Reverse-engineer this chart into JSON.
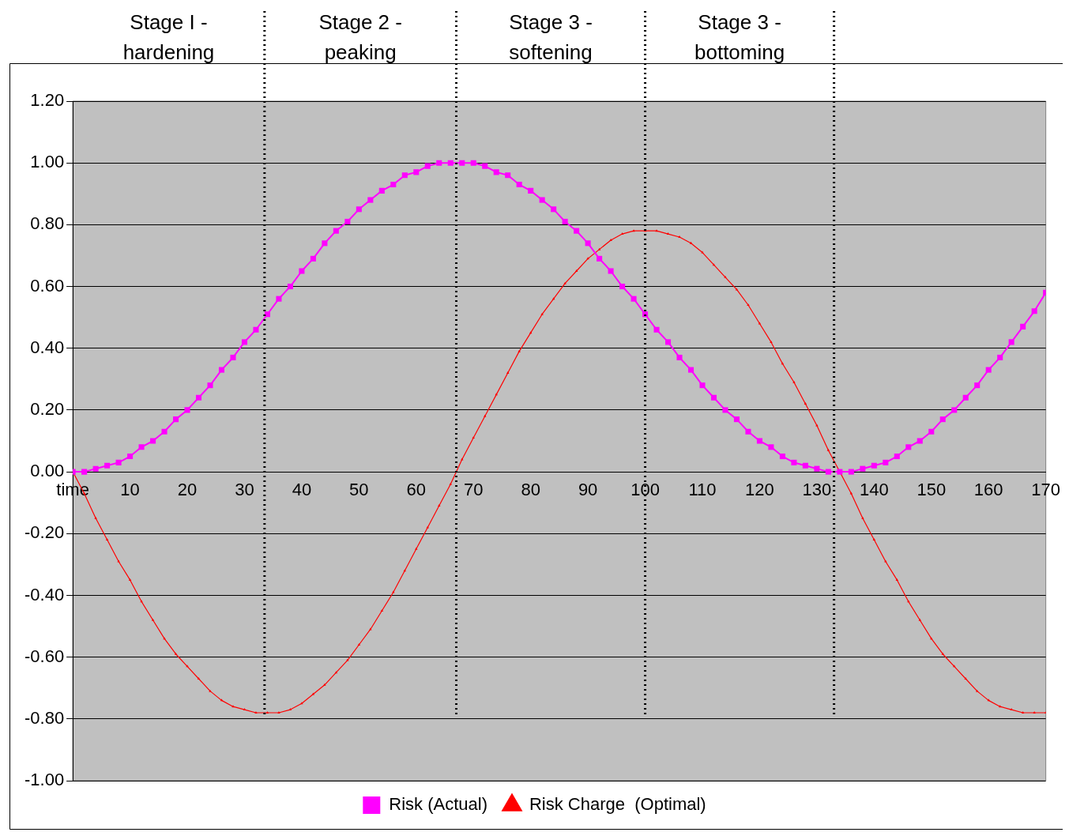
{
  "chart_data": {
    "type": "line",
    "x": [
      0,
      2,
      4,
      6,
      8,
      10,
      12,
      14,
      16,
      18,
      20,
      22,
      24,
      26,
      28,
      30,
      32,
      34,
      36,
      38,
      40,
      42,
      44,
      46,
      48,
      50,
      52,
      54,
      56,
      58,
      60,
      62,
      64,
      66,
      68,
      70,
      72,
      74,
      76,
      78,
      80,
      82,
      84,
      86,
      88,
      90,
      92,
      94,
      96,
      98,
      100,
      102,
      104,
      106,
      108,
      110,
      112,
      114,
      116,
      118,
      120,
      122,
      124,
      126,
      128,
      130,
      132,
      134,
      136,
      138,
      140,
      142,
      144,
      146,
      148,
      150,
      152,
      154,
      156,
      158,
      160,
      162,
      164,
      166,
      168,
      170
    ],
    "series": [
      {
        "name": "Risk (Actual)",
        "color": "#ff00ff",
        "marker": "square",
        "values": [
          0,
          0.0,
          0.01,
          0.02,
          0.03,
          0.05,
          0.08,
          0.1,
          0.13,
          0.17,
          0.2,
          0.24,
          0.28,
          0.33,
          0.37,
          0.42,
          0.46,
          0.51,
          0.56,
          0.6,
          0.65,
          0.69,
          0.74,
          0.78,
          0.81,
          0.85,
          0.88,
          0.91,
          0.93,
          0.96,
          0.97,
          0.99,
          1.0,
          1.0,
          1.0,
          1.0,
          0.99,
          0.97,
          0.96,
          0.93,
          0.91,
          0.88,
          0.85,
          0.81,
          0.78,
          0.74,
          0.69,
          0.65,
          0.6,
          0.56,
          0.51,
          0.46,
          0.42,
          0.37,
          0.33,
          0.28,
          0.24,
          0.2,
          0.17,
          0.13,
          0.1,
          0.08,
          0.05,
          0.03,
          0.02,
          0.01,
          0.0,
          0,
          0.0,
          0.01,
          0.02,
          0.03,
          0.05,
          0.08,
          0.1,
          0.13,
          0.17,
          0.2,
          0.24,
          0.28,
          0.33,
          0.37,
          0.42,
          0.47,
          0.52,
          0.58
        ]
      },
      {
        "name": "Risk Charge  (Optimal)",
        "color": "#ff0000",
        "marker": "triangle",
        "values": [
          0,
          -0.07,
          -0.15,
          -0.22,
          -0.29,
          -0.35,
          -0.42,
          -0.48,
          -0.54,
          -0.59,
          -0.63,
          -0.67,
          -0.71,
          -0.74,
          -0.76,
          -0.77,
          -0.78,
          -0.78,
          -0.78,
          -0.77,
          -0.75,
          -0.72,
          -0.69,
          -0.65,
          -0.61,
          -0.56,
          -0.51,
          -0.45,
          -0.39,
          -0.32,
          -0.25,
          -0.18,
          -0.11,
          -0.04,
          0.04,
          0.11,
          0.18,
          0.25,
          0.32,
          0.39,
          0.45,
          0.51,
          0.56,
          0.61,
          0.65,
          0.69,
          0.72,
          0.75,
          0.77,
          0.78,
          0.78,
          0.78,
          0.77,
          0.76,
          0.74,
          0.71,
          0.67,
          0.63,
          0.59,
          0.54,
          0.48,
          0.42,
          0.35,
          0.29,
          0.22,
          0.15,
          0.07,
          0,
          -0.07,
          -0.15,
          -0.22,
          -0.29,
          -0.35,
          -0.42,
          -0.48,
          -0.54,
          -0.59,
          -0.63,
          -0.67,
          -0.71,
          -0.74,
          -0.76,
          -0.77,
          -0.78,
          -0.78,
          -0.78
        ]
      }
    ],
    "xlim": [
      0,
      170
    ],
    "xticks": [
      {
        "value": 0,
        "label": "time"
      },
      10,
      20,
      30,
      40,
      50,
      60,
      70,
      80,
      90,
      100,
      110,
      120,
      130,
      140,
      150,
      160,
      170
    ],
    "ylim": [
      -1,
      1.2
    ],
    "yticks": [
      {
        "value": -1,
        "label": "-1.00"
      },
      {
        "value": -0.8,
        "label": "-0.80"
      },
      {
        "value": -0.6,
        "label": "-0.60"
      },
      {
        "value": -0.4,
        "label": "-0.40"
      },
      {
        "value": -0.2,
        "label": "-0.20"
      },
      {
        "value": 0,
        "label": "0.00"
      },
      {
        "value": 0.2,
        "label": "0.20"
      },
      {
        "value": 0.4,
        "label": "0.40"
      },
      {
        "value": 0.6,
        "label": "0.60"
      },
      {
        "value": 0.8,
        "label": "0.80"
      },
      {
        "value": 1,
        "label": "1.00"
      },
      {
        "value": 1.2,
        "label": "1.20"
      }
    ],
    "grid": "y",
    "legend": "bottom",
    "ref_lines": [
      {
        "axis": "x",
        "value": 33.5,
        "line_style": "dotted",
        "color": "#000000"
      },
      {
        "axis": "x",
        "value": 67,
        "line_style": "dotted",
        "color": "#000000"
      },
      {
        "axis": "x",
        "value": 100,
        "line_style": "dotted",
        "color": "#000000"
      },
      {
        "axis": "x",
        "value": 133,
        "line_style": "dotted",
        "color": "#000000"
      }
    ],
    "annotations": [
      "Stage I - hardening",
      "Stage 2 - peaking",
      "Stage 3 - softening",
      "Stage 3 - bottoming"
    ]
  }
}
